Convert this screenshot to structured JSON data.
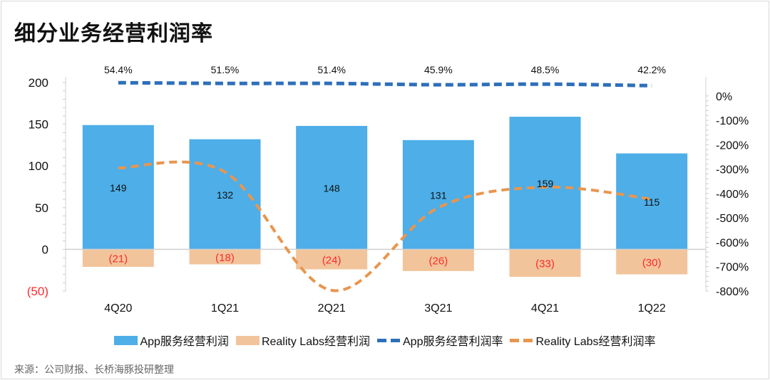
{
  "title": "细分业务经营利润率",
  "source": "来源：公司财报、长桥海豚投研整理",
  "colors": {
    "app_bar": "#4daee8",
    "rl_bar": "#f2c49b",
    "app_line": "#2e6fba",
    "rl_line": "#e8964e",
    "neg_label": "#ff2a2a"
  },
  "chart_data": {
    "type": "bar",
    "title": "细分业务经营利润率",
    "categories": [
      "4Q20",
      "1Q21",
      "2Q21",
      "3Q21",
      "4Q21",
      "1Q22"
    ],
    "ylim": [
      -50,
      200
    ],
    "yticks": [
      200,
      150,
      100,
      50,
      0,
      -50
    ],
    "ytick_labels": [
      "200",
      "150",
      "100",
      "50",
      "0",
      "(50)"
    ],
    "y2lim": [
      -800,
      55
    ],
    "y2ticks": [
      0,
      -100,
      -200,
      -300,
      -400,
      -500,
      -600,
      -700,
      -800
    ],
    "y2tick_labels": [
      "0%",
      "-100%",
      "-200%",
      "-300%",
      "-400%",
      "-500%",
      "-600%",
      "-700%",
      "-800%"
    ],
    "series": [
      {
        "name": "App服务经营利润",
        "type": "bar",
        "axis": "left",
        "values": [
          149,
          132,
          148,
          131,
          159,
          115
        ],
        "labels": [
          "149",
          "132",
          "148",
          "131",
          "159",
          "115"
        ]
      },
      {
        "name": "Reality Labs经营利润",
        "type": "bar",
        "axis": "left",
        "values": [
          -21,
          -18,
          -24,
          -26,
          -33,
          -30
        ],
        "labels": [
          "(21)",
          "(18)",
          "(24)",
          "(26)",
          "(33)",
          "(30)"
        ]
      },
      {
        "name": "App服务经营利润率",
        "type": "line",
        "axis": "right",
        "values": [
          54.4,
          51.5,
          51.4,
          45.9,
          48.5,
          42.2
        ],
        "labels": [
          "54.4%",
          "51.5%",
          "51.4%",
          "45.9%",
          "48.5%",
          "42.2%"
        ]
      },
      {
        "name": "Reality Labs经营利润率",
        "type": "line",
        "axis": "right",
        "values": [
          -295,
          -312,
          -797,
          -458,
          -374,
          -423
        ]
      }
    ],
    "legend": "bottom"
  }
}
